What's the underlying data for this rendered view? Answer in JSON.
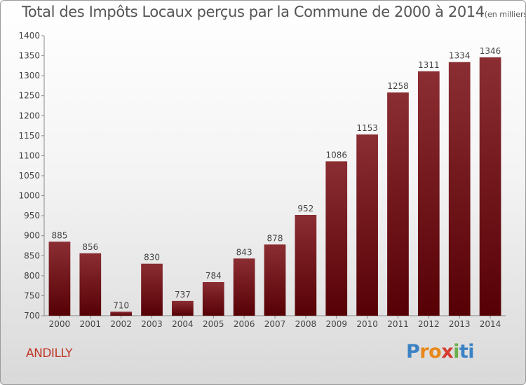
{
  "chart_data": {
    "type": "bar",
    "title": "Total des Impôts Locaux perçus par la Commune de 2000 à 2014",
    "title_unit": "(en milliers d'€)",
    "xlabel": "",
    "ylabel": "",
    "categories": [
      "2000",
      "2001",
      "2002",
      "2003",
      "2004",
      "2005",
      "2006",
      "2007",
      "2008",
      "2009",
      "2010",
      "2011",
      "2012",
      "2013",
      "2014"
    ],
    "values": [
      885,
      856,
      710,
      830,
      737,
      784,
      843,
      878,
      952,
      1086,
      1153,
      1258,
      1311,
      1334,
      1346
    ],
    "ylim": [
      700,
      1400
    ],
    "yticks": [
      700,
      750,
      800,
      850,
      900,
      950,
      1000,
      1050,
      1100,
      1150,
      1200,
      1250,
      1300,
      1350,
      1400
    ],
    "grid": false,
    "bar_color": "#7a1f24"
  },
  "commune": "ANDILLY",
  "logo": {
    "parts": [
      "P",
      "r",
      "o",
      "x",
      "i",
      "ti"
    ]
  }
}
